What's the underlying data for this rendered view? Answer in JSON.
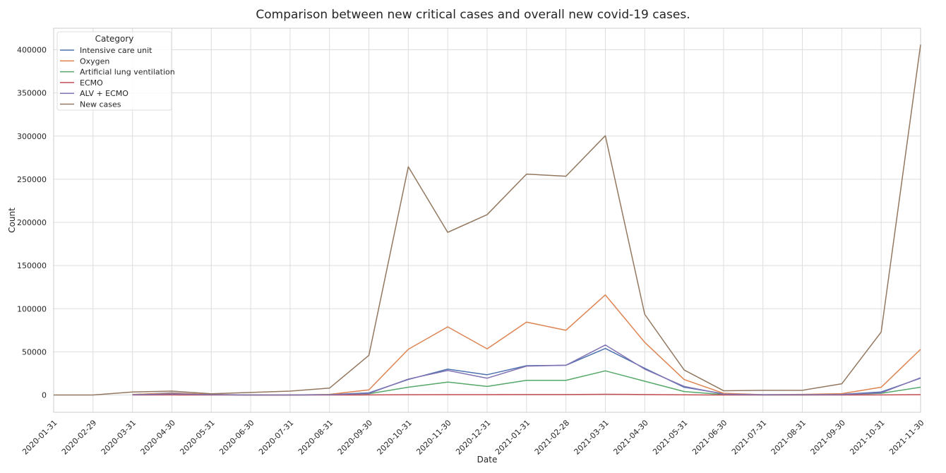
{
  "chart_data": {
    "type": "line",
    "title": "Comparison between new critical cases and overall new covid-19 cases.",
    "xlabel": "Date",
    "ylabel": "Count",
    "ylim": [
      -20000,
      425000
    ],
    "yticks": [
      0,
      50000,
      100000,
      150000,
      200000,
      250000,
      300000,
      350000,
      400000
    ],
    "grid": true,
    "legend": {
      "title": "Category",
      "placement": "top-left"
    },
    "x": [
      "2020-01-31",
      "2020-02-29",
      "2020-03-31",
      "2020-04-30",
      "2020-05-31",
      "2020-06-30",
      "2020-07-31",
      "2020-08-31",
      "2020-09-30",
      "2020-10-31",
      "2020-11-30",
      "2020-12-31",
      "2021-01-31",
      "2021-02-28",
      "2021-03-31",
      "2021-04-30",
      "2021-05-31",
      "2021-06-30",
      "2021-07-31",
      "2021-08-31",
      "2021-09-30",
      "2021-10-31",
      "2021-11-30"
    ],
    "series": [
      {
        "name": "Intensive care unit",
        "color": "#4c72b0",
        "values": [
          null,
          null,
          500,
          2500,
          500,
          0,
          0,
          500,
          2500,
          18000,
          30000,
          23500,
          34000,
          34500,
          54000,
          31000,
          9000,
          1500,
          300,
          300,
          800,
          3500,
          19500
        ]
      },
      {
        "name": "Oxygen",
        "color": "#dd8452",
        "values": [
          null,
          null,
          800,
          2000,
          800,
          0,
          0,
          800,
          6000,
          53000,
          79000,
          53500,
          84500,
          75000,
          116000,
          61000,
          18000,
          2000,
          500,
          800,
          1600,
          9000,
          53000
        ]
      },
      {
        "name": "Artificial lung ventilation",
        "color": "#55a868",
        "values": [
          null,
          null,
          200,
          1000,
          300,
          0,
          0,
          300,
          1500,
          9000,
          15000,
          10000,
          17000,
          17000,
          28000,
          16000,
          4000,
          600,
          100,
          100,
          500,
          2000,
          9000
        ]
      },
      {
        "name": "ECMO",
        "color": "#c44e52",
        "values": [
          null,
          null,
          0,
          100,
          0,
          0,
          0,
          0,
          100,
          300,
          500,
          400,
          600,
          600,
          900,
          600,
          200,
          50,
          0,
          0,
          50,
          100,
          500
        ]
      },
      {
        "name": "ALV + ECMO",
        "color": "#8172b3",
        "values": [
          null,
          null,
          200,
          1200,
          400,
          0,
          0,
          300,
          1800,
          18500,
          28500,
          19500,
          33500,
          34500,
          58000,
          30000,
          10000,
          1000,
          200,
          300,
          600,
          2500,
          20000
        ]
      },
      {
        "name": "New cases",
        "color": "#937860",
        "values": [
          0,
          0,
          3500,
          4500,
          1500,
          3000,
          4500,
          8000,
          46000,
          264500,
          188500,
          209000,
          256000,
          253500,
          300500,
          93500,
          29000,
          5000,
          5500,
          5500,
          13000,
          73000,
          406000
        ]
      }
    ]
  }
}
